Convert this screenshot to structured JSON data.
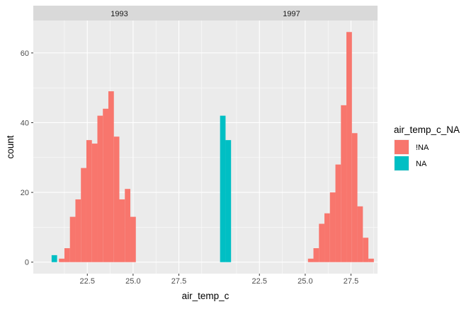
{
  "chart_data": {
    "type": "bar",
    "subtype": "faceted-histogram",
    "xlabel": "air_temp_c",
    "ylabel": "count",
    "xlim": [
      19.55,
      28.95
    ],
    "ylim": [
      -3.3,
      69.3
    ],
    "x_ticks": [
      22.5,
      25.0,
      27.5
    ],
    "x_tick_labels": [
      "22.5",
      "25.0",
      "27.5"
    ],
    "x_minor_ticks": [
      21.25,
      23.75,
      26.25,
      28.75
    ],
    "y_ticks": [
      0,
      20,
      40,
      60
    ],
    "y_tick_labels": [
      "0",
      "20",
      "40",
      "60"
    ],
    "y_minor_ticks": [
      10,
      30,
      50
    ],
    "bin_width": 0.3,
    "grid": true,
    "background": "#EBEBEB",
    "legend": {
      "title": "air_temp_c_NA",
      "position": "right",
      "entries": [
        {
          "label": "!NA",
          "color": "#F8766D"
        },
        {
          "label": "NA",
          "color": "#00BFC4"
        }
      ]
    },
    "facets": [
      {
        "label": "1993",
        "series": [
          {
            "name": "!NA",
            "color": "#F8766D",
            "bins": [
              {
                "x": 21.1,
                "count": 1
              },
              {
                "x": 21.4,
                "count": 4
              },
              {
                "x": 21.7,
                "count": 13
              },
              {
                "x": 22.0,
                "count": 18
              },
              {
                "x": 22.3,
                "count": 27
              },
              {
                "x": 22.6,
                "count": 35
              },
              {
                "x": 22.9,
                "count": 34
              },
              {
                "x": 23.2,
                "count": 42
              },
              {
                "x": 23.5,
                "count": 44
              },
              {
                "x": 23.8,
                "count": 49
              },
              {
                "x": 24.1,
                "count": 36
              },
              {
                "x": 24.4,
                "count": 18
              },
              {
                "x": 24.7,
                "count": 21
              },
              {
                "x": 25.0,
                "count": 13
              },
              {
                "x": 25.3,
                "count": 0
              }
            ]
          },
          {
            "name": "NA",
            "color": "#00BFC4",
            "bins": [
              {
                "x": 20.7,
                "count": 2
              }
            ]
          }
        ]
      },
      {
        "label": "1997",
        "series": [
          {
            "name": "!NA",
            "color": "#F8766D",
            "bins": [
              {
                "x": 25.3,
                "count": 1
              },
              {
                "x": 25.6,
                "count": 4
              },
              {
                "x": 25.9,
                "count": 11
              },
              {
                "x": 26.2,
                "count": 14
              },
              {
                "x": 26.5,
                "count": 20
              },
              {
                "x": 26.8,
                "count": 28
              },
              {
                "x": 27.1,
                "count": 45
              },
              {
                "x": 27.4,
                "count": 66
              },
              {
                "x": 27.7,
                "count": 37
              },
              {
                "x": 28.0,
                "count": 16
              },
              {
                "x": 28.3,
                "count": 7
              },
              {
                "x": 28.6,
                "count": 1
              }
            ]
          },
          {
            "name": "NA",
            "color": "#00BFC4",
            "bins": [
              {
                "x": 20.5,
                "count": 42
              },
              {
                "x": 20.8,
                "count": 35
              }
            ]
          }
        ]
      }
    ]
  }
}
